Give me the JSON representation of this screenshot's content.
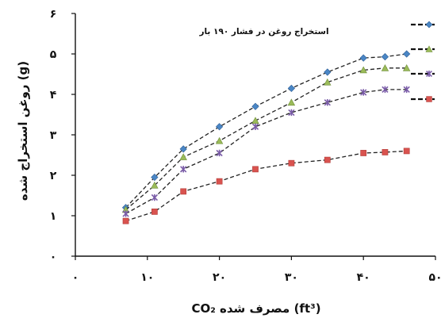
{
  "chart_data": {
    "type": "line",
    "annotation": "استخراج روغن در فشار ۱۹۰ بار",
    "xlabel": "CO₂ مصرف شده (ft³)",
    "ylabel": "روغن استخراج شده (g)",
    "xlim": [
      0,
      50
    ],
    "ylim": [
      0,
      6
    ],
    "x_ticks": [
      {
        "value": 0,
        "label": "۰"
      },
      {
        "value": 10,
        "label": "۱۰"
      },
      {
        "value": 20,
        "label": "۲۰"
      },
      {
        "value": 30,
        "label": "۳۰"
      },
      {
        "value": 40,
        "label": "۴۰"
      },
      {
        "value": 50,
        "label": "۵۰"
      }
    ],
    "y_ticks": [
      {
        "value": 0,
        "label": "۰"
      },
      {
        "value": 1,
        "label": "۱"
      },
      {
        "value": 2,
        "label": "۲"
      },
      {
        "value": 3,
        "label": "۳"
      },
      {
        "value": 4,
        "label": "۴"
      },
      {
        "value": 5,
        "label": "۵"
      },
      {
        "value": 6,
        "label": "۶"
      }
    ],
    "grid": false,
    "legend": "right",
    "series": [
      {
        "marker": "diamond",
        "color": "#4a86c5",
        "x": [
          7,
          11,
          15,
          20,
          25,
          30,
          35,
          40,
          43,
          46
        ],
        "y": [
          1.2,
          1.95,
          2.65,
          3.2,
          3.7,
          4.15,
          4.55,
          4.9,
          4.93,
          5.0
        ]
      },
      {
        "marker": "triangle",
        "color": "#9bbb59",
        "x": [
          7,
          11,
          15,
          20,
          25,
          30,
          35,
          40,
          43,
          46
        ],
        "y": [
          1.15,
          1.75,
          2.45,
          2.85,
          3.35,
          3.8,
          4.3,
          4.6,
          4.65,
          4.65
        ]
      },
      {
        "marker": "asterisk",
        "color": "#7a5ca8",
        "x": [
          7,
          11,
          15,
          20,
          25,
          30,
          35,
          40,
          43,
          46
        ],
        "y": [
          1.05,
          1.45,
          2.15,
          2.55,
          3.2,
          3.55,
          3.8,
          4.05,
          4.12,
          4.12
        ]
      },
      {
        "marker": "square",
        "color": "#d9534f",
        "x": [
          7,
          11,
          15,
          20,
          25,
          30,
          35,
          40,
          43,
          46
        ],
        "y": [
          0.87,
          1.1,
          1.6,
          1.85,
          2.15,
          2.3,
          2.38,
          2.55,
          2.57,
          2.6
        ]
      }
    ]
  }
}
